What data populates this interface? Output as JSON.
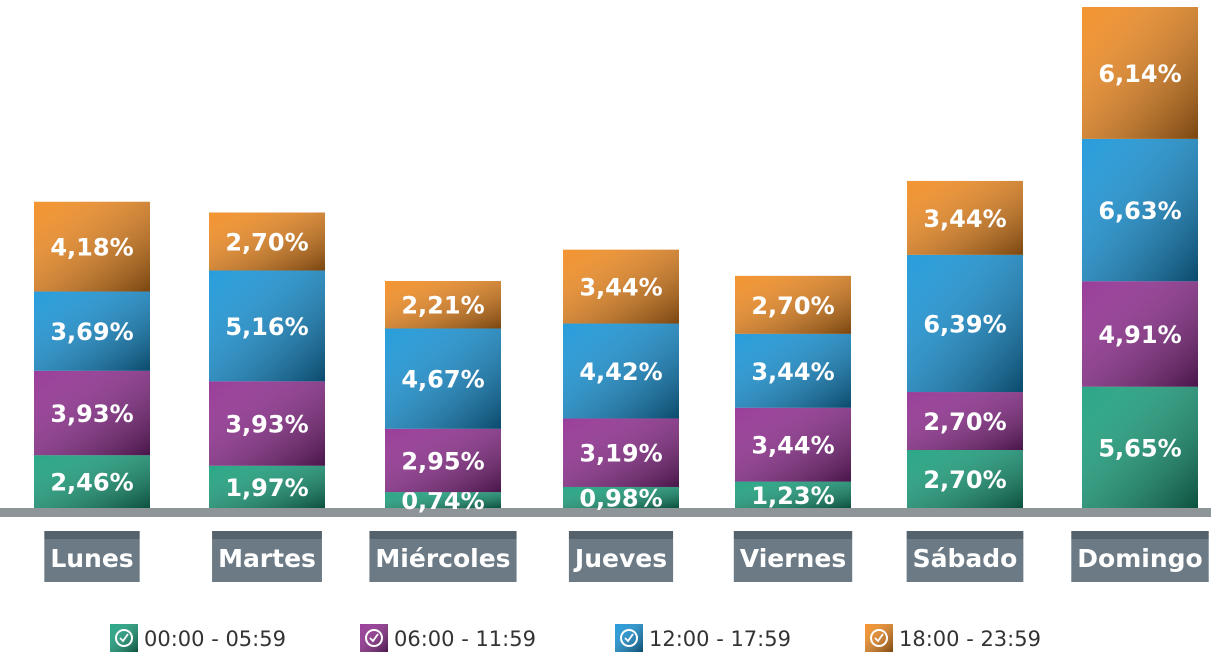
{
  "chart_data": {
    "type": "stacked_bar",
    "categories": [
      "Lunes",
      "Martes",
      "Miércoles",
      "Jueves",
      "Viernes",
      "Sábado",
      "Domingo"
    ],
    "series": [
      {
        "name": "00:00 - 05:59",
        "color": "#17a07c",
        "values": [
          2.46,
          1.97,
          0.74,
          0.98,
          1.23,
          2.7,
          5.65
        ],
        "value_labels": [
          "2,46%",
          "1,97%",
          "0,74%",
          "0,98%",
          "1,23%",
          "2,70%",
          "5,65%"
        ]
      },
      {
        "name": "06:00 - 11:59",
        "color": "#912c91",
        "values": [
          3.93,
          3.93,
          2.95,
          3.19,
          3.44,
          2.7,
          4.91
        ],
        "value_labels": [
          "3,93%",
          "3,93%",
          "2,95%",
          "3,19%",
          "3,44%",
          "2,70%",
          "4,91%"
        ]
      },
      {
        "name": "12:00 - 17:59",
        "color": "#1594d8",
        "values": [
          3.69,
          5.16,
          4.67,
          4.42,
          3.44,
          6.39,
          6.63
        ],
        "value_labels": [
          "3,69%",
          "5,16%",
          "4,67%",
          "4,42%",
          "3,44%",
          "6,39%",
          "6,63%"
        ]
      },
      {
        "name": "18:00 - 23:59",
        "color": "#f28b1f",
        "values": [
          4.18,
          2.7,
          2.21,
          3.44,
          2.7,
          3.44,
          6.14
        ],
        "value_labels": [
          "4,18%",
          "2,70%",
          "2,21%",
          "3,44%",
          "2,70%",
          "3,44%",
          "6,14%"
        ]
      }
    ]
  }
}
